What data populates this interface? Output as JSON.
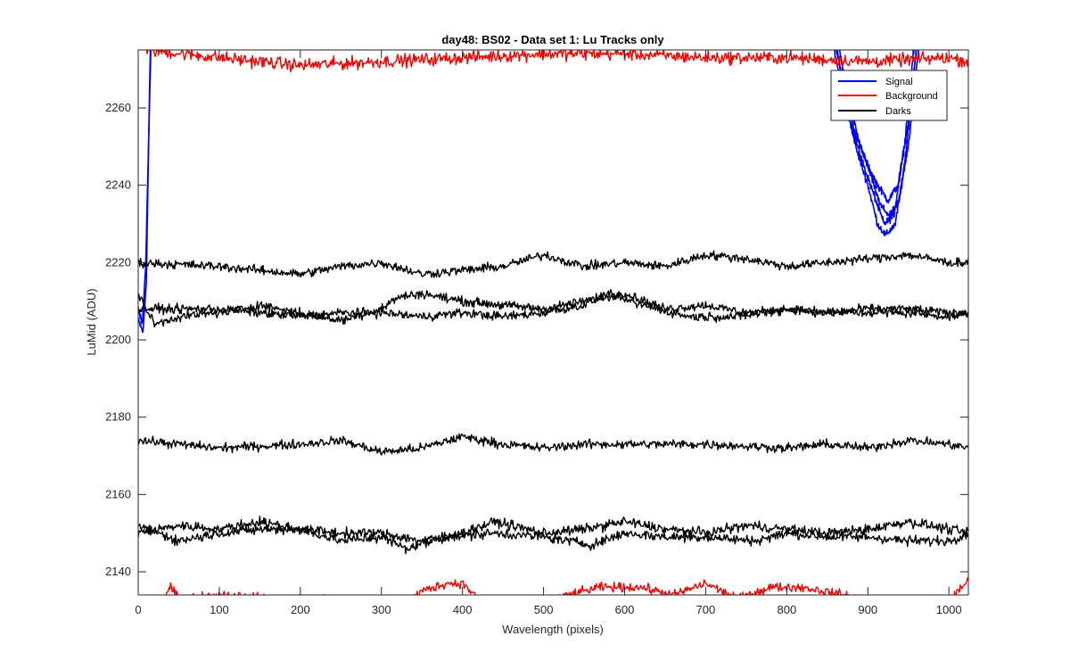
{
  "chart_data": {
    "type": "line",
    "title": "day48: BS02 - Data set 1: Lu Tracks only",
    "xlabel": "Wavelength (pixels)",
    "ylabel": "LuMid (ADU)",
    "xlim": [
      0,
      1024
    ],
    "ylim": [
      2134,
      2275
    ],
    "xticks": [
      0,
      100,
      200,
      300,
      400,
      500,
      600,
      700,
      800,
      900,
      1000
    ],
    "yticks": [
      2140,
      2160,
      2180,
      2200,
      2220,
      2240,
      2260
    ],
    "grid": false,
    "legend_position": "top-right",
    "legend": [
      {
        "name": "Signal",
        "color": "#0000ff"
      },
      {
        "name": "Background",
        "color": "#ff0000"
      },
      {
        "name": "Darks",
        "color": "#000000"
      }
    ],
    "series": [
      {
        "group": "Signal",
        "color": "#0000ff",
        "noise": 0.8,
        "points": [
          [
            0,
            2205
          ],
          [
            6,
            2202
          ],
          [
            10,
            2215
          ],
          [
            12,
            2240
          ],
          [
            14,
            2265
          ],
          [
            16,
            2285
          ]
        ]
      },
      {
        "group": "Signal",
        "color": "#0000ff",
        "noise": 0.8,
        "points": [
          [
            0,
            2208
          ],
          [
            5,
            2204
          ],
          [
            9,
            2218
          ],
          [
            12,
            2244
          ],
          [
            15,
            2270
          ],
          [
            17,
            2290
          ]
        ]
      },
      {
        "group": "Signal",
        "color": "#0000ff",
        "noise": 0.8,
        "points": [
          [
            850,
            2285
          ],
          [
            865,
            2268
          ],
          [
            880,
            2255
          ],
          [
            895,
            2245
          ],
          [
            910,
            2236
          ],
          [
            920,
            2230
          ],
          [
            932,
            2232
          ],
          [
            945,
            2250
          ],
          [
            955,
            2272
          ],
          [
            965,
            2290
          ]
        ]
      },
      {
        "group": "Signal",
        "color": "#0000ff",
        "noise": 0.8,
        "points": [
          [
            855,
            2285
          ],
          [
            870,
            2265
          ],
          [
            885,
            2250
          ],
          [
            900,
            2240
          ],
          [
            912,
            2230
          ],
          [
            922,
            2227
          ],
          [
            934,
            2230
          ],
          [
            947,
            2248
          ],
          [
            957,
            2270
          ],
          [
            967,
            2290
          ]
        ]
      },
      {
        "group": "Signal",
        "color": "#0000ff",
        "noise": 0.8,
        "points": [
          [
            852,
            2285
          ],
          [
            868,
            2268
          ],
          [
            882,
            2255
          ],
          [
            898,
            2246
          ],
          [
            912,
            2240
          ],
          [
            925,
            2236
          ],
          [
            937,
            2240
          ],
          [
            950,
            2256
          ],
          [
            960,
            2275
          ],
          [
            970,
            2290
          ]
        ]
      },
      {
        "group": "Signal",
        "color": "#0000ff",
        "noise": 0.8,
        "points": [
          [
            858,
            2285
          ],
          [
            872,
            2266
          ],
          [
            888,
            2252
          ],
          [
            903,
            2243
          ],
          [
            915,
            2235
          ],
          [
            927,
            2232
          ],
          [
            939,
            2236
          ],
          [
            951,
            2252
          ],
          [
            961,
            2272
          ],
          [
            971,
            2290
          ]
        ]
      },
      {
        "group": "Background",
        "color": "#ff0000",
        "noise": 1.4,
        "points": [
          [
            10,
            2275
          ],
          [
            100,
            2273
          ],
          [
            200,
            2271
          ],
          [
            300,
            2272
          ],
          [
            400,
            2273
          ],
          [
            500,
            2274
          ],
          [
            600,
            2274
          ],
          [
            700,
            2273
          ],
          [
            800,
            2273
          ],
          [
            900,
            2272
          ],
          [
            1000,
            2273
          ],
          [
            1024,
            2272
          ]
        ]
      },
      {
        "group": "Background",
        "color": "#ff0000",
        "noise": 1.0,
        "points": [
          [
            0,
            2132
          ],
          [
            30,
            2133
          ],
          [
            40,
            2136
          ],
          [
            50,
            2133
          ],
          [
            100,
            2134
          ],
          [
            170,
            2133
          ],
          [
            330,
            2132
          ],
          [
            350,
            2135
          ],
          [
            380,
            2137
          ],
          [
            400,
            2137
          ],
          [
            420,
            2133
          ],
          [
            500,
            2132
          ],
          [
            530,
            2134
          ],
          [
            570,
            2136
          ],
          [
            620,
            2136
          ],
          [
            660,
            2134
          ],
          [
            700,
            2137
          ],
          [
            740,
            2133
          ],
          [
            780,
            2136
          ],
          [
            820,
            2136
          ],
          [
            870,
            2134
          ],
          [
            920,
            2132
          ],
          [
            1000,
            2132
          ],
          [
            1024,
            2138
          ]
        ]
      },
      {
        "group": "Darks",
        "color": "#000000",
        "noise": 1.0,
        "points": [
          [
            0,
            2220
          ],
          [
            100,
            2219
          ],
          [
            200,
            2217
          ],
          [
            250,
            2219
          ],
          [
            300,
            2220
          ],
          [
            350,
            2217
          ],
          [
            400,
            2218
          ],
          [
            450,
            2219
          ],
          [
            500,
            2222
          ],
          [
            550,
            2219
          ],
          [
            600,
            2220
          ],
          [
            650,
            2219
          ],
          [
            700,
            2222
          ],
          [
            750,
            2221
          ],
          [
            800,
            2219
          ],
          [
            850,
            2220
          ],
          [
            900,
            2221
          ],
          [
            950,
            2222
          ],
          [
            1000,
            2220
          ],
          [
            1024,
            2220
          ]
        ]
      },
      {
        "group": "Darks",
        "color": "#000000",
        "noise": 1.0,
        "points": [
          [
            0,
            2208
          ],
          [
            50,
            2208
          ],
          [
            100,
            2208
          ],
          [
            150,
            2207
          ],
          [
            200,
            2206
          ],
          [
            250,
            2207
          ],
          [
            300,
            2207
          ],
          [
            350,
            2206
          ],
          [
            400,
            2207
          ],
          [
            450,
            2206
          ],
          [
            500,
            2207
          ],
          [
            550,
            2209
          ],
          [
            580,
            2212
          ],
          [
            620,
            2209
          ],
          [
            680,
            2206
          ],
          [
            740,
            2206
          ],
          [
            800,
            2208
          ],
          [
            850,
            2207
          ],
          [
            900,
            2207
          ],
          [
            950,
            2207
          ],
          [
            1000,
            2206
          ],
          [
            1024,
            2207
          ]
        ]
      },
      {
        "group": "Darks",
        "color": "#000000",
        "noise": 1.0,
        "points": [
          [
            0,
            2212
          ],
          [
            20,
            2204
          ],
          [
            50,
            2206
          ],
          [
            100,
            2207
          ],
          [
            150,
            2209
          ],
          [
            200,
            2207
          ],
          [
            250,
            2205
          ],
          [
            300,
            2208
          ],
          [
            320,
            2211
          ],
          [
            350,
            2212
          ],
          [
            400,
            2210
          ],
          [
            450,
            2209
          ],
          [
            500,
            2208
          ],
          [
            550,
            2210
          ],
          [
            600,
            2212
          ],
          [
            650,
            2208
          ],
          [
            700,
            2209
          ],
          [
            750,
            2207
          ],
          [
            800,
            2208
          ],
          [
            850,
            2207
          ],
          [
            900,
            2208
          ],
          [
            950,
            2208
          ],
          [
            1000,
            2207
          ],
          [
            1024,
            2207
          ]
        ]
      },
      {
        "group": "Darks",
        "color": "#000000",
        "noise": 1.0,
        "points": [
          [
            0,
            2174
          ],
          [
            100,
            2172
          ],
          [
            200,
            2173
          ],
          [
            250,
            2174
          ],
          [
            300,
            2171
          ],
          [
            350,
            2172
          ],
          [
            400,
            2175
          ],
          [
            450,
            2173
          ],
          [
            500,
            2172
          ],
          [
            550,
            2173
          ],
          [
            600,
            2173
          ],
          [
            700,
            2173
          ],
          [
            800,
            2172
          ],
          [
            850,
            2173
          ],
          [
            900,
            2172
          ],
          [
            950,
            2174
          ],
          [
            1000,
            2173
          ],
          [
            1024,
            2172
          ]
        ]
      },
      {
        "group": "Darks",
        "color": "#000000",
        "noise": 1.1,
        "points": [
          [
            0,
            2150
          ],
          [
            50,
            2152
          ],
          [
            100,
            2151
          ],
          [
            150,
            2153
          ],
          [
            200,
            2151
          ],
          [
            250,
            2150
          ],
          [
            300,
            2150
          ],
          [
            350,
            2148
          ],
          [
            400,
            2150
          ],
          [
            440,
            2153
          ],
          [
            500,
            2150
          ],
          [
            550,
            2151
          ],
          [
            600,
            2153
          ],
          [
            650,
            2151
          ],
          [
            700,
            2150
          ],
          [
            750,
            2152
          ],
          [
            800,
            2151
          ],
          [
            850,
            2150
          ],
          [
            900,
            2151
          ],
          [
            950,
            2153
          ],
          [
            1000,
            2151
          ],
          [
            1024,
            2150
          ]
        ]
      },
      {
        "group": "Darks",
        "color": "#000000",
        "noise": 1.1,
        "points": [
          [
            0,
            2152
          ],
          [
            50,
            2148
          ],
          [
            100,
            2150
          ],
          [
            150,
            2151
          ],
          [
            200,
            2151
          ],
          [
            250,
            2148
          ],
          [
            300,
            2149
          ],
          [
            330,
            2146
          ],
          [
            380,
            2149
          ],
          [
            440,
            2150
          ],
          [
            500,
            2149
          ],
          [
            560,
            2147
          ],
          [
            600,
            2150
          ],
          [
            650,
            2149
          ],
          [
            700,
            2149
          ],
          [
            760,
            2148
          ],
          [
            800,
            2150
          ],
          [
            850,
            2149
          ],
          [
            900,
            2149
          ],
          [
            950,
            2148
          ],
          [
            1000,
            2148
          ],
          [
            1024,
            2150
          ]
        ]
      }
    ]
  }
}
